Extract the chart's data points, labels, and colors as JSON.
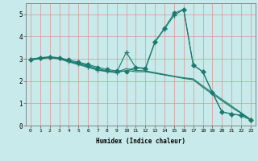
{
  "xlabel": "Humidex (Indice chaleur)",
  "xlim": [
    -0.5,
    23.5
  ],
  "ylim": [
    0,
    5.5
  ],
  "yticks": [
    0,
    1,
    2,
    3,
    4,
    5
  ],
  "xticks": [
    0,
    1,
    2,
    3,
    4,
    5,
    6,
    7,
    8,
    9,
    10,
    11,
    12,
    13,
    14,
    15,
    16,
    17,
    18,
    19,
    20,
    21,
    22,
    23
  ],
  "bg_color": "#c8eaea",
  "line_color": "#1a7a6e",
  "grid_color": "#e09090",
  "lines": [
    {
      "x": [
        0,
        1,
        2,
        3,
        4,
        5,
        6,
        7,
        8,
        9,
        10,
        11,
        12,
        13,
        14,
        15,
        16,
        17,
        18,
        19,
        20,
        21,
        22,
        23
      ],
      "y": [
        2.98,
        3.05,
        3.08,
        3.05,
        2.95,
        2.85,
        2.75,
        2.62,
        2.52,
        2.46,
        2.44,
        2.62,
        2.58,
        3.78,
        4.38,
        5.05,
        5.22,
        2.72,
        2.42,
        1.48,
        0.62,
        0.52,
        0.46,
        0.26
      ],
      "marker": "D",
      "markersize": 2.5,
      "lw": 0.8
    },
    {
      "x": [
        0,
        1,
        2,
        3,
        4,
        5,
        6,
        7,
        8,
        9,
        10,
        11,
        12,
        13,
        14,
        15,
        16,
        17,
        18,
        19,
        20,
        21,
        22,
        23
      ],
      "y": [
        2.98,
        3.05,
        3.08,
        3.05,
        2.9,
        2.78,
        2.65,
        2.5,
        2.45,
        2.4,
        3.3,
        2.6,
        2.55,
        3.75,
        4.35,
        4.95,
        5.22,
        2.72,
        2.42,
        1.48,
        0.62,
        0.52,
        0.46,
        0.26
      ],
      "marker": "+",
      "markersize": 4.5,
      "lw": 0.8
    },
    {
      "x": [
        0,
        1,
        2,
        3,
        4,
        5,
        6,
        7,
        8,
        9,
        10,
        11,
        12,
        13,
        14,
        15,
        16,
        17,
        18,
        19,
        20,
        21,
        22,
        23
      ],
      "y": [
        2.98,
        3.02,
        3.08,
        3.02,
        2.9,
        2.8,
        2.7,
        2.56,
        2.46,
        2.4,
        2.56,
        2.48,
        2.46,
        2.38,
        2.3,
        2.22,
        2.15,
        2.1,
        1.78,
        1.48,
        1.18,
        0.88,
        0.58,
        0.28
      ],
      "marker": null,
      "markersize": 0,
      "lw": 0.8
    },
    {
      "x": [
        0,
        1,
        2,
        3,
        4,
        5,
        6,
        7,
        8,
        9,
        10,
        11,
        12,
        13,
        14,
        15,
        16,
        17,
        18,
        19,
        20,
        21,
        22,
        23
      ],
      "y": [
        2.95,
        3.0,
        3.05,
        3.0,
        2.86,
        2.74,
        2.62,
        2.5,
        2.42,
        2.38,
        2.48,
        2.42,
        2.42,
        2.35,
        2.27,
        2.2,
        2.12,
        2.06,
        1.72,
        1.42,
        1.12,
        0.82,
        0.55,
        0.25
      ],
      "marker": null,
      "markersize": 0,
      "lw": 0.8
    }
  ]
}
